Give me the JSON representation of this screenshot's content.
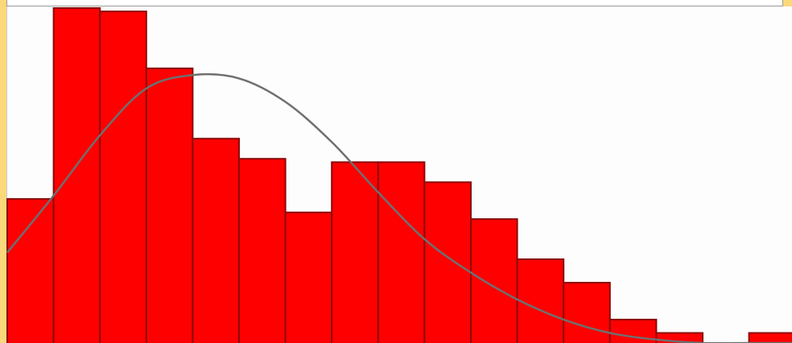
{
  "colors": {
    "bar_fill": "#ff0000",
    "bar_stroke": "#8a0a0a",
    "curve": "#6f6f6f",
    "frame": "#fbd97a",
    "plot_bg": "#fdfdfd"
  },
  "chart_data": {
    "type": "bar",
    "subtype": "histogram-with-density-curve",
    "title": "",
    "xlabel": "",
    "ylabel": "",
    "grid": false,
    "legend": "none",
    "x_bins": {
      "count": 17,
      "first_left": 0,
      "width": 1
    },
    "ylim": [
      0,
      100
    ],
    "series": [
      {
        "type": "bar",
        "values": [
          43,
          100,
          99,
          82,
          61,
          55,
          39,
          54,
          54,
          48,
          37,
          25,
          18,
          7,
          3,
          0,
          3
        ]
      },
      {
        "type": "line",
        "x": [
          0,
          1,
          2,
          3,
          4,
          5,
          6,
          7,
          8,
          9,
          10,
          11,
          12,
          13,
          14,
          15,
          16,
          17
        ],
        "values": [
          27,
          44,
          62,
          76,
          80,
          79,
          72,
          60,
          45,
          31,
          21,
          13,
          7,
          3,
          1,
          0,
          0,
          0
        ]
      }
    ]
  }
}
